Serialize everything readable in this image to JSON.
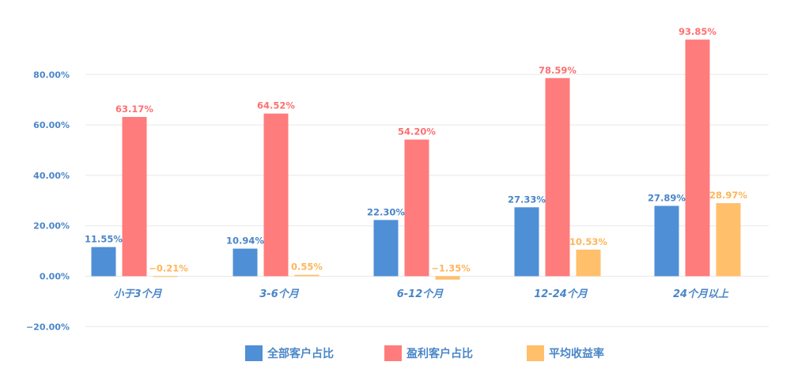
{
  "chart_data": {
    "type": "bar",
    "categories": [
      "小于3个月",
      "3-6个月",
      "6-12个月",
      "12-24个月",
      "24个月以上"
    ],
    "series": [
      {
        "name": "全部客户占比",
        "color": "#4f8fd6",
        "values": [
          11.55,
          10.94,
          22.3,
          27.33,
          27.89
        ],
        "labels": [
          "11.55%",
          "10.94%",
          "22.30%",
          "27.33%",
          "27.89%"
        ]
      },
      {
        "name": "盈利客户占比",
        "color": "#ff7c7c",
        "values": [
          63.17,
          64.52,
          54.2,
          78.59,
          93.85
        ],
        "labels": [
          "63.17%",
          "64.52%",
          "54.20%",
          "78.59%",
          "93.85%"
        ]
      },
      {
        "name": "平均收益率",
        "color": "#ffbf6b",
        "values": [
          -0.21,
          0.55,
          -1.35,
          10.53,
          28.97
        ],
        "labels": [
          "−0.21%",
          "0.55%",
          "−1.35%",
          "10.53%",
          "28.97%"
        ]
      }
    ],
    "yticks": [
      "−20.00%",
      "0.00%",
      "20.00%",
      "40.00%",
      "60.00%",
      "80.00%"
    ],
    "ytick_values": [
      -20,
      0,
      20,
      40,
      60,
      80
    ],
    "ylim": [
      -20,
      100
    ],
    "grid": true,
    "legend_position": "bottom",
    "tick_color": "#4a86c8",
    "grid_color": "#e8e8e8"
  }
}
